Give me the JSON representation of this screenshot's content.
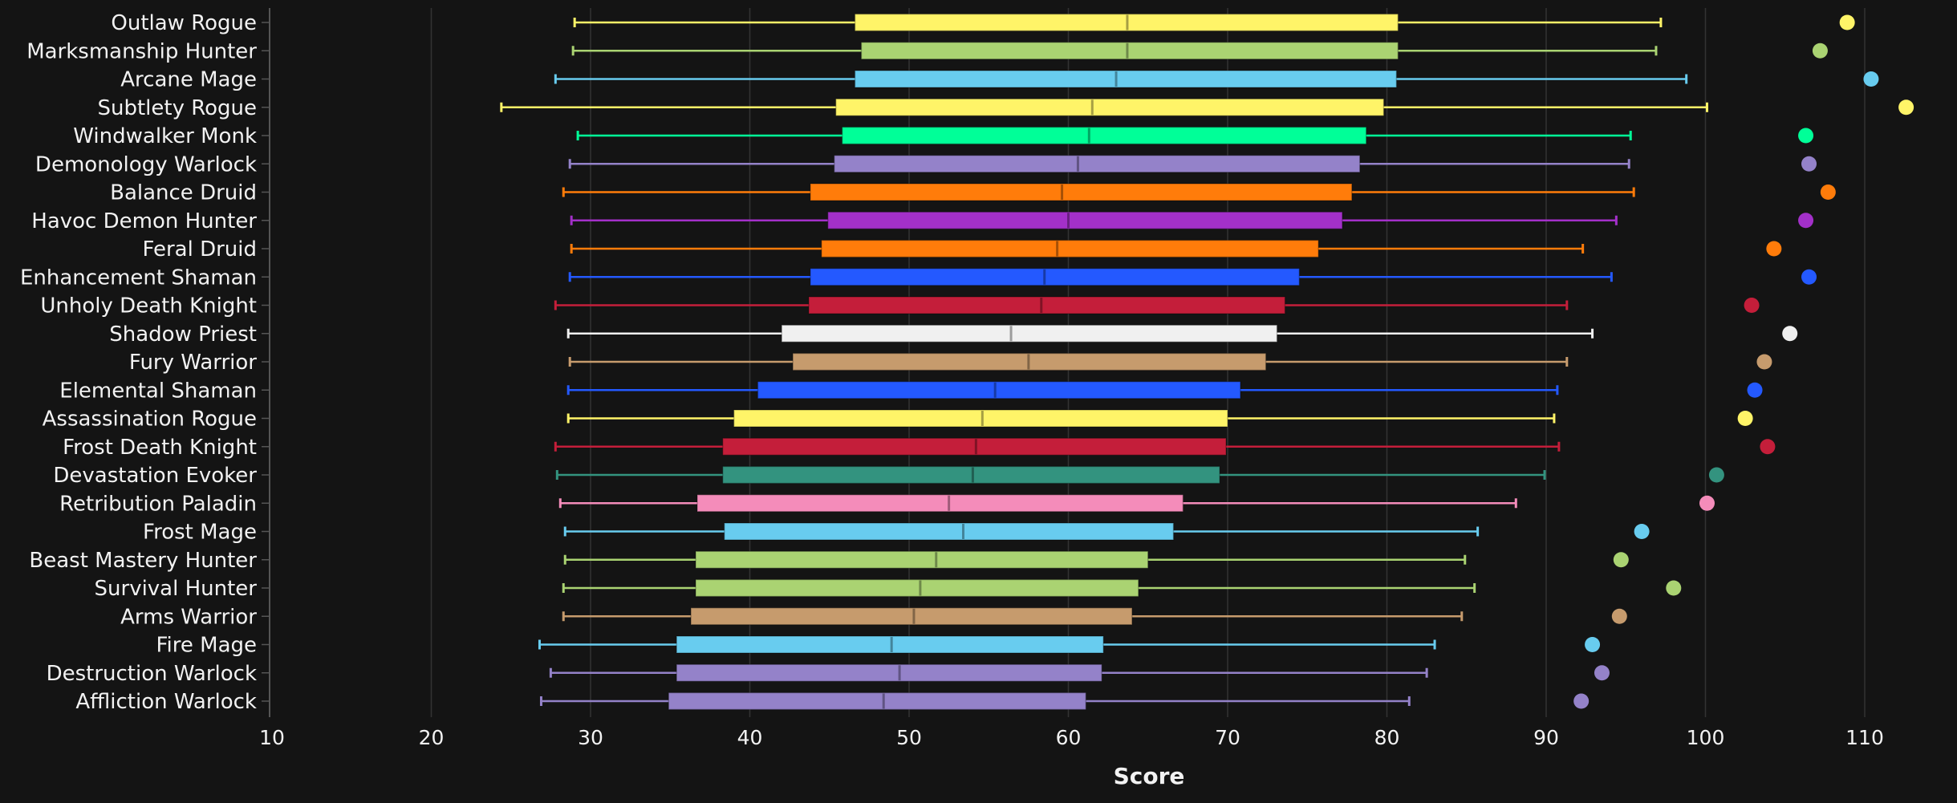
{
  "chart_data": {
    "type": "boxplot",
    "title": "",
    "xlabel": "Score",
    "ylabel": "",
    "xlim": [
      10,
      113
    ],
    "xticks": [
      10,
      20,
      30,
      40,
      50,
      60,
      70,
      80,
      90,
      100,
      110
    ],
    "grid": true,
    "legend": "none",
    "series": [
      {
        "name": "Outlaw Rogue",
        "color": "#FFF468",
        "min": 29.0,
        "q1": 46.6,
        "median": 63.7,
        "q3": 80.7,
        "max": 97.2,
        "outlier": 108.9
      },
      {
        "name": "Marksmanship Hunter",
        "color": "#AAD372",
        "min": 28.9,
        "q1": 47.0,
        "median": 63.7,
        "q3": 80.7,
        "max": 96.9,
        "outlier": 107.2
      },
      {
        "name": "Arcane Mage",
        "color": "#68CCEF",
        "min": 27.8,
        "q1": 46.6,
        "median": 63.0,
        "q3": 80.6,
        "max": 98.8,
        "outlier": 110.4
      },
      {
        "name": "Subtlety Rogue",
        "color": "#FFF468",
        "min": 24.4,
        "q1": 45.4,
        "median": 61.5,
        "q3": 79.8,
        "max": 100.1,
        "outlier": 112.6
      },
      {
        "name": "Windwalker Monk",
        "color": "#00FF98",
        "min": 29.2,
        "q1": 45.8,
        "median": 61.3,
        "q3": 78.7,
        "max": 95.3,
        "outlier": 106.3
      },
      {
        "name": "Demonology Warlock",
        "color": "#9482C9",
        "min": 28.7,
        "q1": 45.3,
        "median": 60.6,
        "q3": 78.3,
        "max": 95.2,
        "outlier": 106.5
      },
      {
        "name": "Balance Druid",
        "color": "#FF7C0A",
        "min": 28.3,
        "q1": 43.8,
        "median": 59.6,
        "q3": 77.8,
        "max": 95.5,
        "outlier": 107.7
      },
      {
        "name": "Havoc Demon Hunter",
        "color": "#A330C9",
        "min": 28.8,
        "q1": 44.9,
        "median": 60.0,
        "q3": 77.2,
        "max": 94.4,
        "outlier": 106.3
      },
      {
        "name": "Feral Druid",
        "color": "#FF7C0A",
        "min": 28.8,
        "q1": 44.5,
        "median": 59.3,
        "q3": 75.7,
        "max": 92.3,
        "outlier": 104.3
      },
      {
        "name": "Enhancement Shaman",
        "color": "#2459FF",
        "min": 28.7,
        "q1": 43.8,
        "median": 58.5,
        "q3": 74.5,
        "max": 94.1,
        "outlier": 106.5
      },
      {
        "name": "Unholy Death Knight",
        "color": "#C41E3A",
        "min": 27.8,
        "q1": 43.7,
        "median": 58.3,
        "q3": 73.6,
        "max": 91.3,
        "outlier": 102.9
      },
      {
        "name": "Shadow Priest",
        "color": "#F0F0F0",
        "min": 28.6,
        "q1": 42.0,
        "median": 56.4,
        "q3": 73.1,
        "max": 92.9,
        "outlier": 105.3
      },
      {
        "name": "Fury Warrior",
        "color": "#C69B6D",
        "min": 28.7,
        "q1": 42.7,
        "median": 57.5,
        "q3": 72.4,
        "max": 91.3,
        "outlier": 103.7
      },
      {
        "name": "Elemental Shaman",
        "color": "#2459FF",
        "min": 28.6,
        "q1": 40.5,
        "median": 55.4,
        "q3": 70.8,
        "max": 90.7,
        "outlier": 103.1
      },
      {
        "name": "Assassination Rogue",
        "color": "#FFF468",
        "min": 28.6,
        "q1": 39.0,
        "median": 54.6,
        "q3": 70.0,
        "max": 90.5,
        "outlier": 102.5
      },
      {
        "name": "Frost Death Knight",
        "color": "#C41E3A",
        "min": 27.8,
        "q1": 38.3,
        "median": 54.2,
        "q3": 69.9,
        "max": 90.8,
        "outlier": 103.9
      },
      {
        "name": "Devastation Evoker",
        "color": "#33937F",
        "min": 27.9,
        "q1": 38.3,
        "median": 54.0,
        "q3": 69.5,
        "max": 89.9,
        "outlier": 100.7
      },
      {
        "name": "Retribution Paladin",
        "color": "#F48CBA",
        "min": 28.1,
        "q1": 36.7,
        "median": 52.5,
        "q3": 67.2,
        "max": 88.1,
        "outlier": 100.1
      },
      {
        "name": "Frost Mage",
        "color": "#68CCEF",
        "min": 28.4,
        "q1": 38.4,
        "median": 53.4,
        "q3": 66.6,
        "max": 85.7,
        "outlier": 96.0
      },
      {
        "name": "Beast Mastery Hunter",
        "color": "#AAD372",
        "min": 28.4,
        "q1": 36.6,
        "median": 51.7,
        "q3": 65.0,
        "max": 84.9,
        "outlier": 94.7
      },
      {
        "name": "Survival Hunter",
        "color": "#AAD372",
        "min": 28.3,
        "q1": 36.6,
        "median": 50.7,
        "q3": 64.4,
        "max": 85.5,
        "outlier": 98.0
      },
      {
        "name": "Arms Warrior",
        "color": "#C69B6D",
        "min": 28.3,
        "q1": 36.3,
        "median": 50.3,
        "q3": 64.0,
        "max": 84.7,
        "outlier": 94.6
      },
      {
        "name": "Fire Mage",
        "color": "#68CCEF",
        "min": 26.8,
        "q1": 35.4,
        "median": 48.9,
        "q3": 62.2,
        "max": 83.0,
        "outlier": 92.9
      },
      {
        "name": "Destruction Warlock",
        "color": "#9482C9",
        "min": 27.5,
        "q1": 35.4,
        "median": 49.4,
        "q3": 62.1,
        "max": 82.5,
        "outlier": 93.5
      },
      {
        "name": "Affliction Warlock",
        "color": "#9482C9",
        "min": 26.9,
        "q1": 34.9,
        "median": 48.4,
        "q3": 61.1,
        "max": 81.4,
        "outlier": 92.2
      }
    ]
  }
}
